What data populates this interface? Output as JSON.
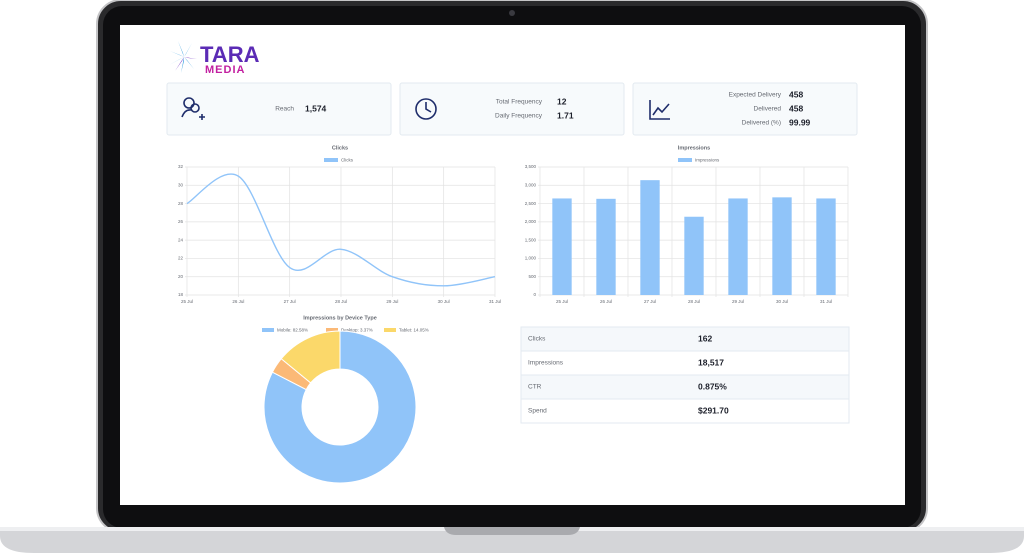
{
  "logo": {
    "top": "TARA",
    "bottom": "MEDIA"
  },
  "cards": [
    {
      "items": [
        {
          "label": "Reach",
          "value": "1,574"
        }
      ]
    },
    {
      "items": [
        {
          "label": "Total Frequency",
          "value": "12"
        },
        {
          "label": "Daily Frequency",
          "value": "1.71"
        }
      ]
    },
    {
      "items": [
        {
          "label": "Expected Delivery",
          "value": "458"
        },
        {
          "label": "Delivered",
          "value": "458"
        },
        {
          "label": "Delivered (%)",
          "value": "99.99"
        }
      ]
    }
  ],
  "chart_data": [
    {
      "type": "line",
      "title": "Clicks",
      "categories": [
        "25 Jul",
        "26 Jul",
        "27 Jul",
        "28 Jul",
        "29 Jul",
        "30 Jul",
        "31 Jul"
      ],
      "series": [
        {
          "name": "Clicks",
          "color": "#90c4f9",
          "values": [
            28,
            31,
            21,
            23,
            20,
            19,
            20
          ]
        }
      ],
      "ylim": [
        18,
        32
      ],
      "yticks": [
        18,
        20,
        22,
        24,
        26,
        28,
        30,
        32
      ],
      "grid": true
    },
    {
      "type": "bar",
      "title": "Impressions",
      "categories": [
        "25 Jul",
        "26 Jul",
        "27 Jul",
        "28 Jul",
        "29 Jul",
        "30 Jul",
        "31 Jul"
      ],
      "series": [
        {
          "name": "Impressions",
          "color": "#90c4f9",
          "values": [
            2640,
            2630,
            3140,
            2140,
            2640,
            2670,
            2640
          ]
        }
      ],
      "ylim": [
        0,
        3500
      ],
      "yticks": [
        0,
        500,
        {
          "value": 1000,
          "label": "1,000"
        },
        {
          "value": 1500,
          "label": "1,500"
        },
        {
          "value": 2000,
          "label": "2,000"
        },
        {
          "value": 2500,
          "label": "2,500"
        },
        {
          "value": 3000,
          "label": "3,000"
        },
        {
          "value": 3500,
          "label": "3,500"
        }
      ],
      "grid": true
    },
    {
      "type": "pie",
      "title": "Impressions by Device Type",
      "categories": [
        "Mobile: 82.58%",
        "Desktop: 3.37%",
        "Tablet: 14.05%"
      ],
      "values": [
        82.58,
        3.37,
        14.05
      ],
      "colors": [
        "#90c4f9",
        "#fbb977",
        "#fbd86a"
      ],
      "donut": true
    }
  ],
  "table": {
    "rows": [
      [
        "Clicks",
        "162"
      ],
      [
        "Impressions",
        "18,517"
      ],
      [
        "CTR",
        "0.875%"
      ],
      [
        "Spend",
        "$291.70"
      ]
    ]
  }
}
